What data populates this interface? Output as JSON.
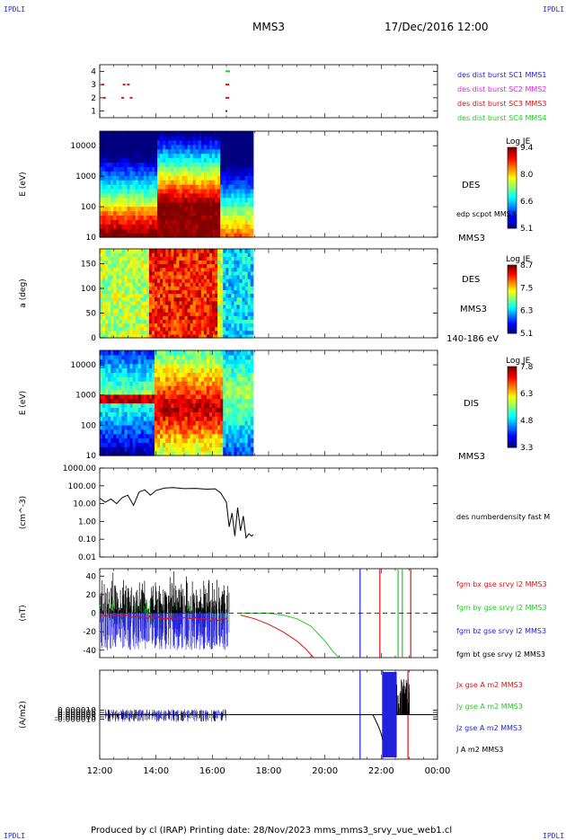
{
  "header": {
    "corner_label": "IPDLI",
    "spacecraft": "MMS3",
    "datetime": "17/Dec/2016 12:00"
  },
  "footer": {
    "text": "Produced by cl (IRAP)   Printing date: 28/Nov/2023   mms_mms3_srvy_vue_web1.cl"
  },
  "time_axis": {
    "ticks": [
      "12:00",
      "14:00",
      "16:00",
      "18:00",
      "20:00",
      "22:00",
      "00:00"
    ],
    "range_hours": [
      12,
      24
    ]
  },
  "colors": {
    "blue": "#2222dd",
    "magenta": "#dd22dd",
    "red": "#dd1111",
    "green": "#22cc22",
    "black": "#000000"
  },
  "chart_data": [
    {
      "type": "scatter",
      "id": "burst",
      "yticks": [
        "4",
        "3",
        "2",
        "1"
      ],
      "ylim": [
        0.5,
        4.5
      ],
      "legend": [
        {
          "text": "des dist burst SC1 MMS1",
          "color": "#2222dd"
        },
        {
          "text": "des dist burst SC2 MMS2",
          "color": "#dd22dd"
        },
        {
          "text": "des dist burst SC3 MMS3",
          "color": "#dd1111"
        },
        {
          "text": "des dist burst SC4 MMS4",
          "color": "#22cc22"
        }
      ],
      "points": [
        {
          "x": 12.1,
          "y": 3,
          "s": 2
        },
        {
          "x": 12.85,
          "y": 3,
          "s": 2
        },
        {
          "x": 13.0,
          "y": 3,
          "s": 2
        },
        {
          "x": 12.15,
          "y": 2,
          "s": 2
        },
        {
          "x": 12.8,
          "y": 2,
          "s": 2
        },
        {
          "x": 13.1,
          "y": 2,
          "s": 2
        },
        {
          "x": 16.5,
          "y": 4,
          "s": 4
        },
        {
          "x": 16.5,
          "y": 3,
          "s": 3
        },
        {
          "x": 16.5,
          "y": 2,
          "s": 3
        },
        {
          "x": 16.5,
          "y": 1,
          "s": 1
        }
      ]
    },
    {
      "type": "heatmap",
      "id": "des-energy",
      "ylabel": "E (eV)",
      "yscale": "log",
      "ylim": [
        10,
        30000
      ],
      "yticks": [
        "10000",
        "1000",
        "100",
        "10"
      ],
      "right_labels": [
        "DES",
        "edp scpot MMS3",
        "MMS3"
      ],
      "colorbar": {
        "title": "Log JE",
        "ticks": [
          "9.4",
          "8.0",
          "6.6",
          "5.1"
        ],
        "range": [
          5.1,
          9.4
        ]
      },
      "x_extent": [
        12.0,
        17.45
      ]
    },
    {
      "type": "heatmap",
      "id": "des-pitch",
      "ylabel": "a (deg)",
      "ylim": [
        0,
        180
      ],
      "yticks": [
        "150",
        "100",
        "50",
        "0"
      ],
      "right_labels": [
        "DES",
        "MMS3",
        "140-186 eV"
      ],
      "colorbar": {
        "title": "Log JE",
        "ticks": [
          "8.7",
          "7.5",
          "6.3",
          "5.1"
        ],
        "range": [
          5.1,
          8.7
        ]
      },
      "x_extent": [
        12.0,
        17.45
      ]
    },
    {
      "type": "heatmap",
      "id": "dis-energy",
      "ylabel": "E (eV)",
      "yscale": "log",
      "ylim": [
        10,
        30000
      ],
      "yticks": [
        "10000",
        "1000",
        "100",
        "10"
      ],
      "right_labels": [
        "DIS",
        "MMS3"
      ],
      "colorbar": {
        "title": "Log JE",
        "ticks": [
          "7.8",
          "6.3",
          "4.8",
          "3.3"
        ],
        "range": [
          3.3,
          7.8
        ]
      },
      "x_extent": [
        12.0,
        17.45
      ]
    },
    {
      "type": "line",
      "id": "density",
      "ylabel": "(cm^-3)",
      "yscale": "log",
      "ylim": [
        0.01,
        1000
      ],
      "yticks": [
        "1000.00",
        "100.00",
        "10.00",
        "1.00",
        "0.10",
        "0.01"
      ],
      "legend": [
        {
          "text": "des numberdensity fast M",
          "color": "#000000"
        }
      ],
      "series": [
        {
          "color": "#000000",
          "x": [
            12.0,
            12.2,
            12.4,
            12.6,
            12.8,
            13.0,
            13.2,
            13.4,
            13.6,
            13.8,
            14.0,
            14.3,
            14.6,
            15.0,
            15.4,
            15.8,
            16.1,
            16.3,
            16.5,
            16.6,
            16.7,
            16.8,
            16.9,
            17.0,
            17.1,
            17.2,
            17.3,
            17.4,
            17.45
          ],
          "y": [
            20,
            12,
            18,
            10,
            22,
            30,
            8,
            45,
            60,
            30,
            55,
            75,
            80,
            70,
            72,
            65,
            68,
            40,
            12,
            0.5,
            3,
            0.15,
            6,
            0.3,
            2,
            0.12,
            0.2,
            0.15,
            0.18
          ]
        }
      ]
    },
    {
      "type": "line",
      "id": "fgm",
      "ylabel": "(nT)",
      "ylim": [
        -48,
        48
      ],
      "yticks": [
        "40",
        "20",
        "0",
        "-20",
        "-40"
      ],
      "legend": [
        {
          "text": "fgm bx gse srvy l2 MMS3",
          "color": "#dd1111"
        },
        {
          "text": "fgm by gse srvy l2 MMS3",
          "color": "#22cc22"
        },
        {
          "text": "fgm bz gse srvy l2 MMS3",
          "color": "#2222dd"
        },
        {
          "text": "fgm bt gse srvy l2 MMS3",
          "color": "#000000"
        }
      ],
      "series": [
        {
          "color": "#dd1111",
          "x": [
            17.0,
            17.5,
            18.0,
            18.5,
            19.0,
            19.3,
            19.6
          ],
          "y": [
            -2,
            -6,
            -12,
            -20,
            -30,
            -38,
            -48
          ]
        },
        {
          "color": "#22cc22",
          "x": [
            17.0,
            18.0,
            18.5,
            19.0,
            19.5,
            20.0,
            20.3,
            20.5
          ],
          "y": [
            0,
            0,
            -2,
            -6,
            -14,
            -30,
            -42,
            -48
          ]
        },
        {
          "color": "#2222dd",
          "x": [
            21.25,
            21.25
          ],
          "y": [
            -48,
            48
          ]
        },
        {
          "color": "#dd1111",
          "x": [
            21.95,
            21.95
          ],
          "y": [
            -48,
            48
          ]
        },
        {
          "color": "#dd1111",
          "x": [
            23.05,
            23.05
          ],
          "y": [
            -48,
            48
          ]
        },
        {
          "color": "#22cc22",
          "x": [
            22.6,
            22.6
          ],
          "y": [
            -48,
            48
          ]
        },
        {
          "color": "#22cc22",
          "x": [
            22.75,
            22.75
          ],
          "y": [
            -48,
            48
          ]
        }
      ]
    },
    {
      "type": "line",
      "id": "current",
      "ylabel": "(A/m2)",
      "ylim": [
        -0.0001,
        0.0001
      ],
      "yticks": [
        "0.000010",
        "0.000005",
        "0.000000",
        "-0.000005",
        "-0.000010"
      ],
      "legend": [
        {
          "text": "Jx gse A m2 MMS3",
          "color": "#dd1111"
        },
        {
          "text": "Jy gse A m2 MMS3",
          "color": "#22cc22"
        },
        {
          "text": "Jz gse A m2 MMS3",
          "color": "#2222dd"
        },
        {
          "text": "J A m2 MMS3",
          "color": "#000000"
        }
      ],
      "series": [
        {
          "color": "#2222dd",
          "x": [
            21.25,
            21.25
          ],
          "y": [
            -0.0001,
            0.0001
          ]
        },
        {
          "color": "#2222dd",
          "x": [
            22.05,
            22.05
          ],
          "y": [
            -0.0001,
            0.0001
          ]
        },
        {
          "color": "#dd1111",
          "x": [
            22.95,
            22.95
          ],
          "y": [
            -0.0001,
            0.0001
          ]
        }
      ]
    }
  ]
}
